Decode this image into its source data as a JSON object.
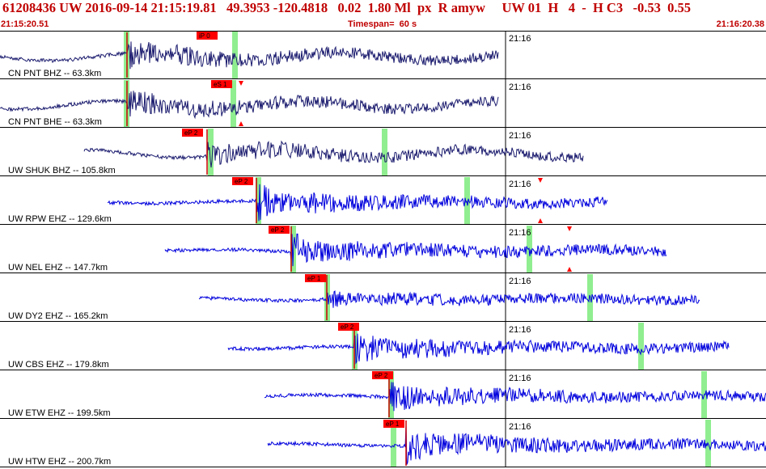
{
  "header": {
    "title": "61208436 UW 2016-09-14 21:15:19.81   49.3953 -120.4818   0.02  1.80 Ml  px  R amyw     UW 01  H   4  -  H C3   -0.53  0.55",
    "start_time": "21:15:20.51",
    "timespan": "Timespan=  60 s",
    "end_time": "21:16:20.38"
  },
  "colors": {
    "header_text": "#c00000",
    "trace_dark": "#1a1a6e",
    "trace_blue": "#0000dd",
    "pick_box": "#ff0000",
    "pick_line": "#cc0000",
    "window_band": "#90ee90",
    "minute_line": "#000000"
  },
  "traces": [
    {
      "label": "CN PNT BHZ -- 63.3km",
      "tick": "21:16",
      "pick": "iP 0",
      "color": "dark",
      "pick_pos": 0.259,
      "band_pos": [
        0.166,
        0.307
      ],
      "start": 0.0,
      "end": 0.651,
      "onset": 0.166,
      "amp": 0.7,
      "markers": []
    },
    {
      "label": "CN PNT BHE -- 63.3km",
      "tick": "21:16",
      "pick": "eS 1",
      "color": "dark",
      "pick_pos": 0.278,
      "band_pos": [
        0.166,
        0.305
      ],
      "start": 0.0,
      "end": 0.651,
      "onset": 0.166,
      "amp": 0.75,
      "markers": [
        {
          "pos": 0.315,
          "dir": "down"
        },
        {
          "pos": 0.315,
          "dir": "up"
        }
      ]
    },
    {
      "label": "UW SHUK BHZ -- 105.8km",
      "tick": "21:16",
      "pick": "eP 2",
      "color": "dark",
      "pick_pos": 0.24,
      "band_pos": [
        0.276,
        0.503
      ],
      "start": 0.11,
      "end": 0.761,
      "onset": 0.27,
      "amp": 0.6,
      "markers": []
    },
    {
      "label": "UW RPW EHZ -- 129.6km",
      "tick": "21:16",
      "pick": "eP 2",
      "color": "blue",
      "pick_pos": 0.305,
      "band_pos": [
        0.338,
        0.61
      ],
      "start": 0.14,
      "end": 0.793,
      "onset": 0.335,
      "amp": 0.9,
      "markers": [
        {
          "pos": 0.705,
          "dir": "down"
        },
        {
          "pos": 0.705,
          "dir": "up"
        }
      ]
    },
    {
      "label": "UW NEL EHZ -- 147.7km",
      "tick": "21:16",
      "pick": "eP 2",
      "color": "blue",
      "pick_pos": 0.353,
      "band_pos": [
        0.383,
        0.692
      ],
      "start": 0.215,
      "end": 0.87,
      "onset": 0.38,
      "amp": 0.85,
      "markers": [
        {
          "pos": 0.743,
          "dir": "down"
        },
        {
          "pos": 0.743,
          "dir": "up"
        }
      ]
    },
    {
      "label": "UW DY2 EHZ -- 165.2km",
      "tick": "21:16",
      "pick": "eP 1",
      "color": "blue",
      "pick_pos": 0.4,
      "band_pos": [
        0.428,
        0.771
      ],
      "start": 0.26,
      "end": 0.913,
      "onset": 0.427,
      "amp": 0.35,
      "markers": []
    },
    {
      "label": "UW CBS EHZ -- 179.8km",
      "tick": "21:16",
      "pick": "eP 2",
      "color": "blue",
      "pick_pos": 0.444,
      "band_pos": [
        0.464,
        0.837
      ],
      "start": 0.298,
      "end": 0.951,
      "onset": 0.462,
      "amp": 0.8,
      "markers": []
    },
    {
      "label": "UW ETW EHZ -- 199.5km",
      "tick": "21:16",
      "pick": "eP 2",
      "color": "blue",
      "pick_pos": 0.488,
      "band_pos": [
        0.511,
        0.92
      ],
      "start": 0.345,
      "end": 1.0,
      "onset": 0.508,
      "amp": 0.8,
      "markers": []
    },
    {
      "label": "UW HTW EHZ -- 200.7km",
      "tick": "21:16",
      "pick": "eP 1",
      "color": "blue",
      "pick_pos": 0.503,
      "band_pos": [
        0.514,
        0.925
      ],
      "start": 0.349,
      "end": 1.0,
      "onset": 0.53,
      "amp": 0.9,
      "markers": []
    }
  ]
}
